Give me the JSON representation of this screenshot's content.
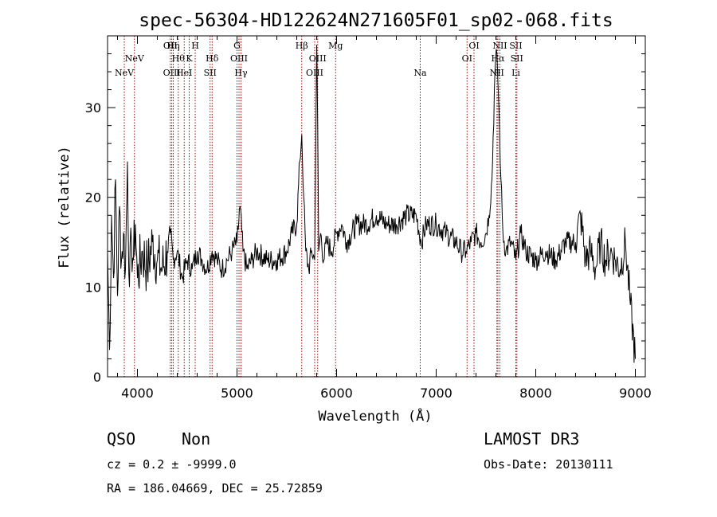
{
  "chart_data": {
    "type": "line",
    "title": "spec-56304-HD122624N271605F01_sp02-068.fits",
    "xlabel": "Wavelength (Å)",
    "ylabel": "Flux (relative)",
    "xlim": [
      3700,
      9100
    ],
    "ylim": [
      0,
      38
    ],
    "xticks": [
      4000,
      5000,
      6000,
      7000,
      8000,
      9000
    ],
    "yticks": [
      0,
      10,
      20,
      30
    ],
    "grid": false,
    "series": [
      {
        "color": "#000000",
        "x": [
          3700,
          3720,
          3740,
          3760,
          3780,
          3800,
          3820,
          3840,
          3860,
          3880,
          3900,
          3920,
          3940,
          3960,
          3980,
          4000,
          4050,
          4100,
          4150,
          4200,
          4250,
          4300,
          4330,
          4360,
          4400,
          4450,
          4500,
          4550,
          4600,
          4650,
          4700,
          4750,
          4800,
          4850,
          4900,
          4950,
          5000,
          5030,
          5060,
          5100,
          5150,
          5200,
          5300,
          5400,
          5500,
          5550,
          5600,
          5630,
          5650,
          5670,
          5690,
          5720,
          5750,
          5780,
          5800,
          5810,
          5820,
          5840,
          5870,
          5900,
          5950,
          6000,
          6050,
          6100,
          6200,
          6300,
          6400,
          6500,
          6600,
          6700,
          6800,
          6850,
          6900,
          7000,
          7100,
          7200,
          7250,
          7300,
          7350,
          7400,
          7450,
          7500,
          7530,
          7560,
          7590,
          7610,
          7630,
          7650,
          7670,
          7700,
          7750,
          7800,
          7850,
          7900,
          8000,
          8100,
          8200,
          8300,
          8400,
          8450,
          8500,
          8550,
          8600,
          8650,
          8700,
          8750,
          8800,
          8850,
          8900,
          8950,
          9000
        ],
        "y": [
          14,
          3,
          18,
          11,
          22,
          9,
          19,
          13,
          16,
          12,
          24,
          10,
          15,
          13,
          17,
          11,
          14,
          12,
          15,
          13,
          12,
          14,
          16,
          13,
          14,
          11,
          13,
          12,
          14,
          13,
          12,
          14,
          13,
          12,
          13,
          14,
          15,
          19,
          14,
          12,
          13,
          14,
          13,
          13,
          14,
          16,
          17,
          24,
          27,
          20,
          14,
          12,
          14,
          13,
          37,
          28,
          14,
          16,
          13,
          15,
          14,
          16,
          17,
          15,
          17,
          17,
          18,
          17,
          17,
          18,
          18,
          15,
          17,
          17,
          16,
          15,
          14,
          14,
          15,
          16,
          15,
          16,
          18,
          22,
          34,
          36,
          30,
          22,
          16,
          14,
          15,
          13,
          16,
          14,
          13,
          14,
          13,
          15,
          15,
          18,
          13,
          14,
          12,
          15,
          13,
          14,
          13,
          12,
          15,
          8,
          2
        ]
      }
    ],
    "emission_lines": [
      {
        "label": "NeV",
        "x": 3868,
        "row": 3
      },
      {
        "label": "NeV",
        "x": 3970,
        "row": 2
      },
      {
        "label": "OII",
        "x": 4330,
        "row": 1
      },
      {
        "label": "Hη",
        "x": 4360,
        "row": 1
      },
      {
        "label": "H",
        "x": 4580,
        "row": 1
      },
      {
        "label": "Hθ",
        "x": 4410,
        "row": 2
      },
      {
        "label": "K",
        "x": 4520,
        "row": 2
      },
      {
        "label": "Hδ",
        "x": 4750,
        "row": 2
      },
      {
        "label": "OIII",
        "x": 4345,
        "row": 3
      },
      {
        "label": "HeI",
        "x": 4470,
        "row": 3
      },
      {
        "label": "SII",
        "x": 4730,
        "row": 3
      },
      {
        "label": "G",
        "x": 5000,
        "row": 1
      },
      {
        "label": "OIII",
        "x": 5020,
        "row": 2
      },
      {
        "label": "Hγ",
        "x": 5040,
        "row": 3
      },
      {
        "label": "Hβ",
        "x": 5650,
        "row": 1
      },
      {
        "label": "OIII",
        "x": 5810,
        "row": 2
      },
      {
        "label": "OIII",
        "x": 5780,
        "row": 3
      },
      {
        "label": "Mg",
        "x": 5990,
        "row": 1
      },
      {
        "label": "Na",
        "x": 6840,
        "row": 3
      },
      {
        "label": "OI",
        "x": 7380,
        "row": 1
      },
      {
        "label": "OI",
        "x": 7310,
        "row": 2
      },
      {
        "label": "NII",
        "x": 7640,
        "row": 1
      },
      {
        "label": "SII",
        "x": 7800,
        "row": 1
      },
      {
        "label": "Hα",
        "x": 7620,
        "row": 2
      },
      {
        "label": "SII",
        "x": 7810,
        "row": 2
      },
      {
        "label": "NII",
        "x": 7610,
        "row": 3
      },
      {
        "label": "Li",
        "x": 7800,
        "row": 3
      }
    ]
  },
  "info": {
    "class": "QSO",
    "subclass": "Non",
    "survey": "LAMOST DR3",
    "cz": "cz = 0.2 ± -9999.0",
    "obs_date": "Obs-Date: 20130111",
    "coords": "RA = 186.04669, DEC =  25.72859"
  }
}
